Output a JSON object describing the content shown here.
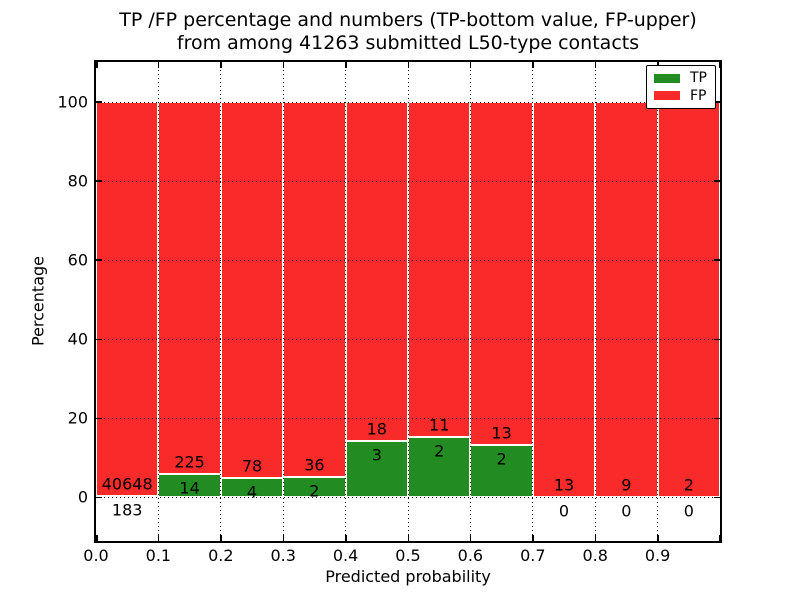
{
  "figure": {
    "title_line1": "TP /FP percentage and numbers (TP-bottom value, FP-upper)",
    "title_line2": "from among 41263 submitted L50-type contacts"
  },
  "chart_data": {
    "type": "bar",
    "stacked": true,
    "normalized": "percent",
    "title": "TP /FP percentage and numbers (TP-bottom value, FP-upper) from among 41263 submitted L50-type contacts",
    "total_submitted": 41263,
    "xlabel": "Predicted probability",
    "ylabel": "Percentage",
    "xlim": [
      0.0,
      1.0
    ],
    "ylim": [
      -11,
      110
    ],
    "bin_width": 0.1,
    "grid": true,
    "x_ticks": [
      0.0,
      0.1,
      0.2,
      0.3,
      0.4,
      0.5,
      0.6,
      0.7,
      0.8,
      0.9
    ],
    "x_tick_labels": [
      "0.0",
      "0.1",
      "0.2",
      "0.3",
      "0.4",
      "0.5",
      "0.6",
      "0.7",
      "0.8",
      "0.9"
    ],
    "y_ticks": [
      0,
      20,
      40,
      60,
      80,
      100
    ],
    "y_tick_labels": [
      "0",
      "20",
      "40",
      "60",
      "80",
      "100"
    ],
    "legend_position": "upper right",
    "legend": [
      {
        "name": "tp-legend-entry",
        "label": "TP",
        "color": "#228b22"
      },
      {
        "name": "fp-legend-entry",
        "label": "FP",
        "color": "#f82a2a"
      }
    ],
    "colors": {
      "tp": "#228b22",
      "fp": "#f82a2a",
      "bar_edge": "#ffffff",
      "grid": "#000000"
    },
    "bins": [
      {
        "x_start": 0.0,
        "x_end": 0.1,
        "tp": 183,
        "fp": 40648
      },
      {
        "x_start": 0.1,
        "x_end": 0.2,
        "tp": 14,
        "fp": 225
      },
      {
        "x_start": 0.2,
        "x_end": 0.3,
        "tp": 4,
        "fp": 78
      },
      {
        "x_start": 0.3,
        "x_end": 0.4,
        "tp": 2,
        "fp": 36
      },
      {
        "x_start": 0.4,
        "x_end": 0.5,
        "tp": 3,
        "fp": 18
      },
      {
        "x_start": 0.5,
        "x_end": 0.6,
        "tp": 2,
        "fp": 11
      },
      {
        "x_start": 0.6,
        "x_end": 0.7,
        "tp": 2,
        "fp": 13
      },
      {
        "x_start": 0.7,
        "x_end": 0.8,
        "tp": 0,
        "fp": 13
      },
      {
        "x_start": 0.8,
        "x_end": 0.9,
        "tp": 0,
        "fp": 9
      },
      {
        "x_start": 0.9,
        "x_end": 1.0,
        "tp": 0,
        "fp": 2
      }
    ]
  }
}
